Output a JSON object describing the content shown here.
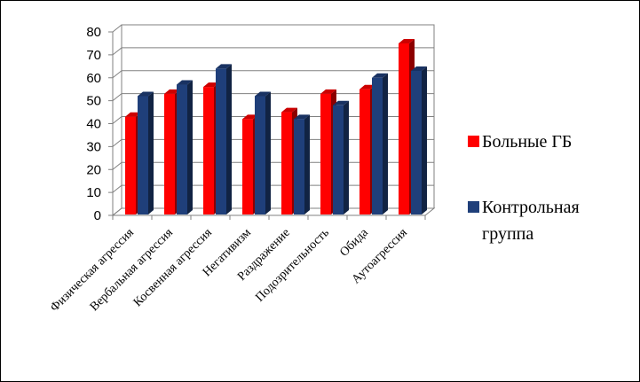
{
  "chart_data": {
    "type": "bar",
    "title": "",
    "xlabel": "",
    "ylabel": "",
    "ylim": [
      0,
      80
    ],
    "yticks": [
      "0",
      "10",
      "20",
      "30",
      "40",
      "50",
      "60",
      "70",
      "80"
    ],
    "grid": true,
    "legend_position": "right",
    "categories": [
      "Физическая агрессия",
      "Вербальная агрессия",
      "Косвенная агрессия",
      "Негативизм",
      "Раздражение",
      "Подозрительность",
      "Обида",
      "Аутоагрессия"
    ],
    "series": [
      {
        "name": "Больные ГБ",
        "color": "#ff0000",
        "values": [
          43,
          53,
          56,
          42,
          45,
          53,
          55,
          75
        ]
      },
      {
        "name": "Контрольная группа",
        "name_lines": [
          "Контрольная",
          "группа"
        ],
        "color": "#1f3f7a",
        "values": [
          52,
          57,
          64,
          52,
          42,
          48,
          60,
          63
        ]
      }
    ]
  }
}
